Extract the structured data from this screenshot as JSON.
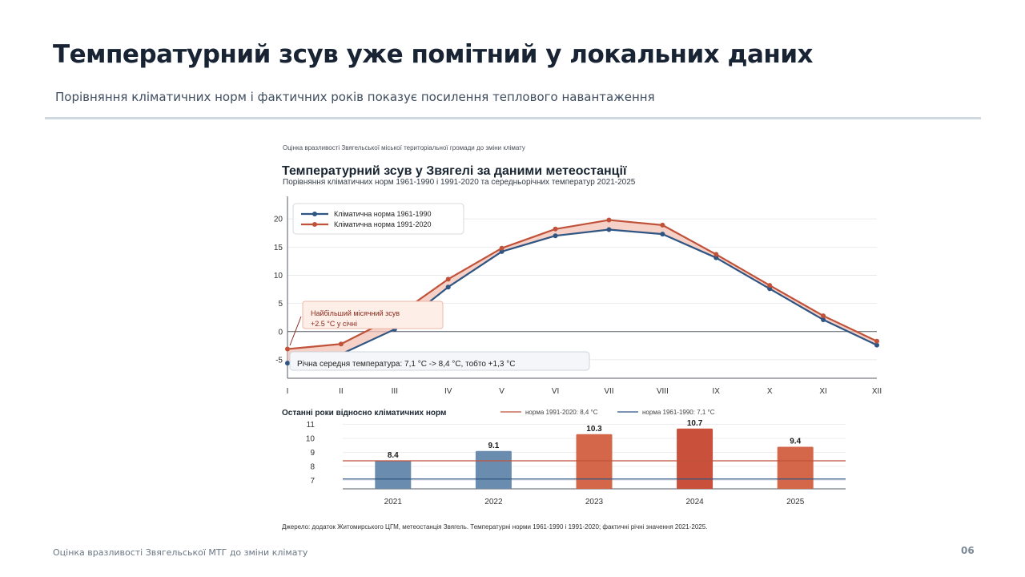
{
  "slide": {
    "title": "Температурний зсув уже помітний у локальних даних",
    "subtitle": "Порівняння кліматичних норм і фактичних років показує посилення теплового навантаження",
    "footer": "Оцінка вразливості Звягельської МТГ до зміни клімату",
    "page_number": "06"
  },
  "figure": {
    "header": "Оцінка вразливості Звягельської міської територіальної громади до зміни клімату",
    "source": "Джерело: додаток Житомирського ЦГМ, метеостанція Звягель. Температурні норми 1961-1990 і 1991-2020; фактичні річні значення 2021-2025."
  },
  "chart_data": [
    {
      "type": "line",
      "title": "Температурний зсув у Звягелі за даними метеостанції",
      "subtitle": "Порівняння кліматичних норм 1961-1990 і 1991-2020 та середньорічних температур 2021-2025",
      "categories": [
        "I",
        "II",
        "III",
        "IV",
        "V",
        "VI",
        "VII",
        "VIII",
        "IX",
        "X",
        "XI",
        "XII"
      ],
      "series": [
        {
          "name": "Кліматична норма 1961-1990",
          "color": "#2f5583",
          "values": [
            -5.6,
            -4.0,
            0.4,
            7.9,
            14.2,
            17.0,
            18.1,
            17.3,
            13.1,
            7.6,
            2.1,
            -2.4
          ]
        },
        {
          "name": "Кліматична норма 1991-2020",
          "color": "#c0523a",
          "values": [
            -3.1,
            -2.2,
            2.6,
            9.3,
            14.8,
            18.2,
            19.8,
            18.9,
            13.7,
            8.2,
            2.8,
            -1.7
          ]
        }
      ],
      "ylim": [
        -8,
        24
      ],
      "yticks": [
        -5,
        0,
        5,
        10,
        15,
        20
      ],
      "grid": true,
      "legend": "top-left",
      "annotations": {
        "max_shift_line1": "Найбільший місячний зсув",
        "max_shift_line2": "+2.5 °C у січні",
        "annual": "Річна середня температура: 7,1 °C -> 8,4 °C, тобто +1,3 °C"
      }
    },
    {
      "type": "bar",
      "title": "Останні роки відносно кліматичних норм",
      "categories": [
        "2021",
        "2022",
        "2023",
        "2024",
        "2025"
      ],
      "values": [
        8.4,
        9.1,
        10.3,
        10.7,
        9.4
      ],
      "value_labels": [
        "8.4",
        "9.1",
        "10.3",
        "10.7",
        "9.4"
      ],
      "bar_colors": [
        "#6a8caf",
        "#6a8caf",
        "#d4674a",
        "#c9503a",
        "#d4674a"
      ],
      "ylim": [
        6.4,
        11.2
      ],
      "yticks": [
        7,
        8,
        9,
        10,
        11
      ],
      "reference_lines": [
        {
          "label": "норма 1991-2020: 8,4 °C",
          "value": 8.4,
          "color": "#c0523a"
        },
        {
          "label": "норма 1961-1990: 7,1 °C",
          "value": 7.1,
          "color": "#2f5583"
        }
      ],
      "legend": "top-right"
    }
  ]
}
